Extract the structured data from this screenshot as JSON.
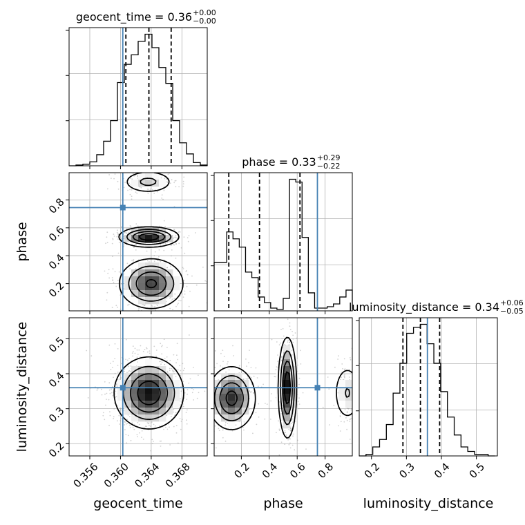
{
  "chart_data": {
    "type": "corner",
    "parameters": [
      "geocent_time",
      "phase",
      "luminosity_distance"
    ],
    "injection_color": "#4682b4",
    "injected_values": {
      "geocent_time": 0.3603,
      "phase": 0.745,
      "luminosity_distance": 0.36
    },
    "titles": [
      {
        "param": "geocent_time",
        "text": "geocent_time = 0.36",
        "sup": "+0.00",
        "sub": "−0.00"
      },
      {
        "param": "phase",
        "text": "phase = 0.33",
        "sup": "+0.29",
        "sub": "−0.22"
      },
      {
        "param": "luminosity_distance",
        "text": "luminosity_distance = 0.34",
        "sup": "+0.06",
        "sub": "−0.05"
      }
    ],
    "axes": {
      "geocent_time": {
        "range": [
          0.3533,
          0.3713
        ],
        "ticks": [
          "0.356",
          "0.360",
          "0.364",
          "0.368"
        ]
      },
      "phase": {
        "range": [
          0.005,
          0.995
        ],
        "x_ticks": [
          "0.2",
          "0.4",
          "0.6",
          "0.8"
        ],
        "y_ticks": [
          "0.2",
          "0.4",
          "0.6",
          "0.8"
        ]
      },
      "luminosity_distance": {
        "range": [
          0.165,
          0.56
        ],
        "x_ticks": [
          "0.2",
          "0.3",
          "0.4",
          "0.5"
        ],
        "y_ticks": [
          "0.2",
          "0.3",
          "0.4",
          "0.5"
        ]
      }
    },
    "histograms": {
      "geocent_time": {
        "bins": [
          0.3533,
          0.3542,
          0.3551,
          0.356,
          0.3569,
          0.3578,
          0.3587,
          0.3596,
          0.3605,
          0.3614,
          0.3623,
          0.3632,
          0.3641,
          0.365,
          0.3659,
          0.3668,
          0.3677,
          0.3686,
          0.3695,
          0.3704,
          0.3713
        ],
        "counts": [
          0,
          1,
          2,
          5,
          14,
          31,
          57,
          105,
          128,
          140,
          157,
          166,
          149,
          124,
          104,
          57,
          29,
          15,
          4,
          1
        ],
        "quantiles": [
          0.3607,
          0.3637,
          0.3666
        ]
      },
      "phase": {
        "bins": [
          0.005,
          0.05,
          0.095,
          0.14,
          0.185,
          0.23,
          0.275,
          0.32,
          0.365,
          0.41,
          0.455,
          0.5,
          0.545,
          0.59,
          0.635,
          0.68,
          0.725,
          0.77,
          0.815,
          0.86,
          0.905,
          0.95,
          0.995
        ],
        "counts": [
          35,
          35,
          57,
          52,
          46,
          28,
          24,
          10,
          6,
          2,
          1,
          9,
          95,
          93,
          53,
          13,
          2,
          2,
          3,
          5,
          10,
          15
        ],
        "quantiles": [
          0.11,
          0.33,
          0.62
        ]
      },
      "luminosity_distance": {
        "bins": [
          0.165,
          0.1844,
          0.2038,
          0.2232,
          0.2426,
          0.262,
          0.2814,
          0.3008,
          0.3202,
          0.3396,
          0.359,
          0.3784,
          0.3978,
          0.4172,
          0.4366,
          0.456,
          0.4754,
          0.4948,
          0.5142,
          0.5336,
          0.553
        ],
        "counts": [
          0,
          1,
          6,
          11,
          21,
          42,
          62,
          82,
          86,
          88,
          75,
          62,
          43,
          26,
          14,
          6,
          3,
          1,
          1,
          0
        ],
        "quantiles": [
          0.29,
          0.34,
          0.395
        ]
      }
    },
    "joint": [
      {
        "x": "geocent_time",
        "y": "phase",
        "modes": [
          {
            "x": 0.3637,
            "y": 0.535,
            "sx": 0.0019,
            "sy": 0.035,
            "w": 0.45
          },
          {
            "x": 0.364,
            "y": 0.2,
            "sx": 0.0021,
            "sy": 0.09,
            "w": 0.38
          },
          {
            "x": 0.3636,
            "y": 0.93,
            "sx": 0.0018,
            "sy": 0.045,
            "w": 0.17
          }
        ]
      },
      {
        "x": "geocent_time",
        "y": "luminosity_distance",
        "modes": [
          {
            "x": 0.3637,
            "y": 0.345,
            "sx": 0.0022,
            "sy": 0.05,
            "w": 1.0
          }
        ]
      },
      {
        "x": "phase",
        "y": "luminosity_distance",
        "modes": [
          {
            "x": 0.13,
            "y": 0.33,
            "sx": 0.085,
            "sy": 0.045,
            "w": 0.4
          },
          {
            "x": 0.53,
            "y": 0.36,
            "sx": 0.032,
            "sy": 0.07,
            "w": 0.45
          },
          {
            "x": 0.96,
            "y": 0.345,
            "sx": 0.055,
            "sy": 0.045,
            "w": 0.15
          }
        ]
      }
    ],
    "grid": true
  }
}
